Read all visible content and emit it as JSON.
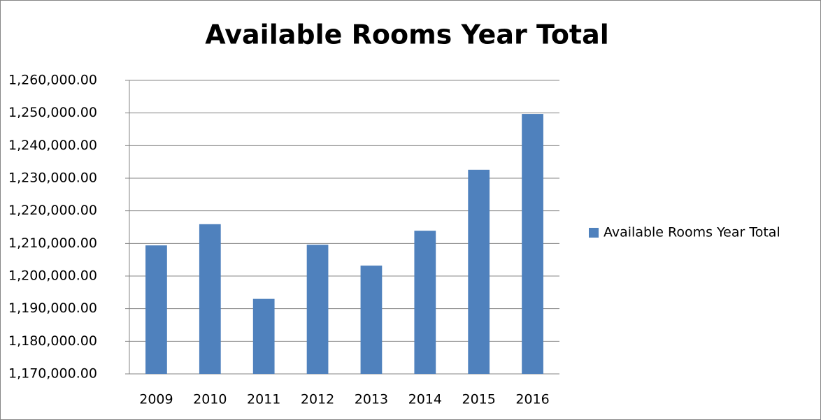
{
  "chart_data": {
    "type": "bar",
    "title": "Available Rooms Year Total",
    "categories": [
      "2009",
      "2010",
      "2011",
      "2012",
      "2013",
      "2014",
      "2015",
      "2016"
    ],
    "series": [
      {
        "name": "Available Rooms Year Total",
        "color": "#4f81bd",
        "values": [
          1209400,
          1215900,
          1193000,
          1209600,
          1203200,
          1213900,
          1232600,
          1249700
        ]
      }
    ],
    "ylim": [
      1170000,
      1260000
    ],
    "yticks": [
      {
        "value": 1170000,
        "label": "1,170,000.00"
      },
      {
        "value": 1180000,
        "label": "1,180,000.00"
      },
      {
        "value": 1190000,
        "label": "1,190,000.00"
      },
      {
        "value": 1200000,
        "label": "1,200,000.00"
      },
      {
        "value": 1210000,
        "label": "1,210,000.00"
      },
      {
        "value": 1220000,
        "label": "1,220,000.00"
      },
      {
        "value": 1230000,
        "label": "1,230,000.00"
      },
      {
        "value": 1240000,
        "label": "1,240,000.00"
      },
      {
        "value": 1250000,
        "label": "1,250,000.00"
      },
      {
        "value": 1260000,
        "label": "1,260,000.00"
      }
    ],
    "grid": true,
    "legend": "right"
  }
}
